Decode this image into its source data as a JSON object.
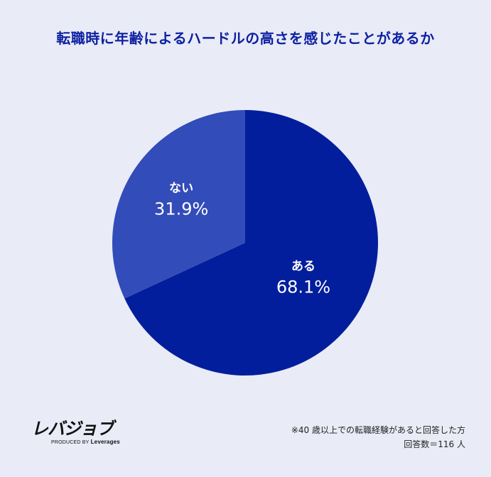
{
  "chart_data": {
    "type": "pie",
    "title": "転職時に年齢によるハードルの高さを感じたことがあるか",
    "slices": [
      {
        "label": "ある",
        "value": 68.1,
        "display": "68.1%",
        "color": "#031e9c"
      },
      {
        "label": "ない",
        "value": 31.9,
        "display": "31.9%",
        "color": "#324cb9"
      }
    ],
    "start_angle_deg": 0,
    "direction": "clockwise"
  },
  "logo": {
    "main": "レバジョブ",
    "sub_prefix": "PRODUCED BY",
    "sub_brand": "Leverages"
  },
  "notes": {
    "line1": "※40 歳以上での転職経験があると回答した方",
    "line2": "回答数＝116 人"
  }
}
